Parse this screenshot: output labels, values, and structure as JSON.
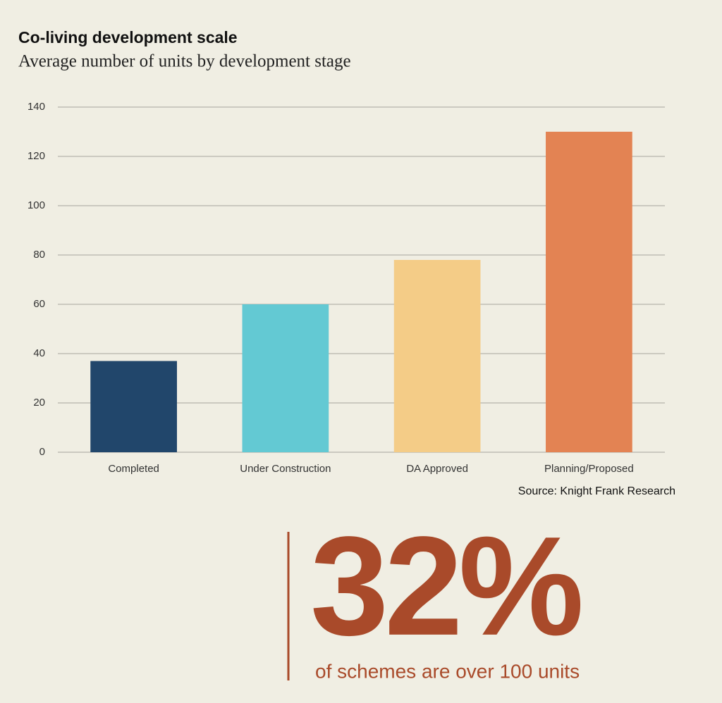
{
  "chart_data": {
    "type": "bar",
    "title": "Co-living development scale",
    "subtitle": "Average number of units by development stage",
    "categories": [
      "Completed",
      "Under Construction",
      "DA Approved",
      "Planning/Proposed"
    ],
    "values": [
      37,
      60,
      78,
      130
    ],
    "colors": [
      "#21466b",
      "#63c9d3",
      "#f4cc87",
      "#e38353"
    ],
    "ylim": [
      0,
      140
    ],
    "yticks": [
      0,
      20,
      40,
      60,
      80,
      100,
      120,
      140
    ],
    "grid": true,
    "source": "Source: Knight Frank Research"
  },
  "callout": {
    "figure": "32%",
    "text": "of schemes are over 100 units"
  }
}
